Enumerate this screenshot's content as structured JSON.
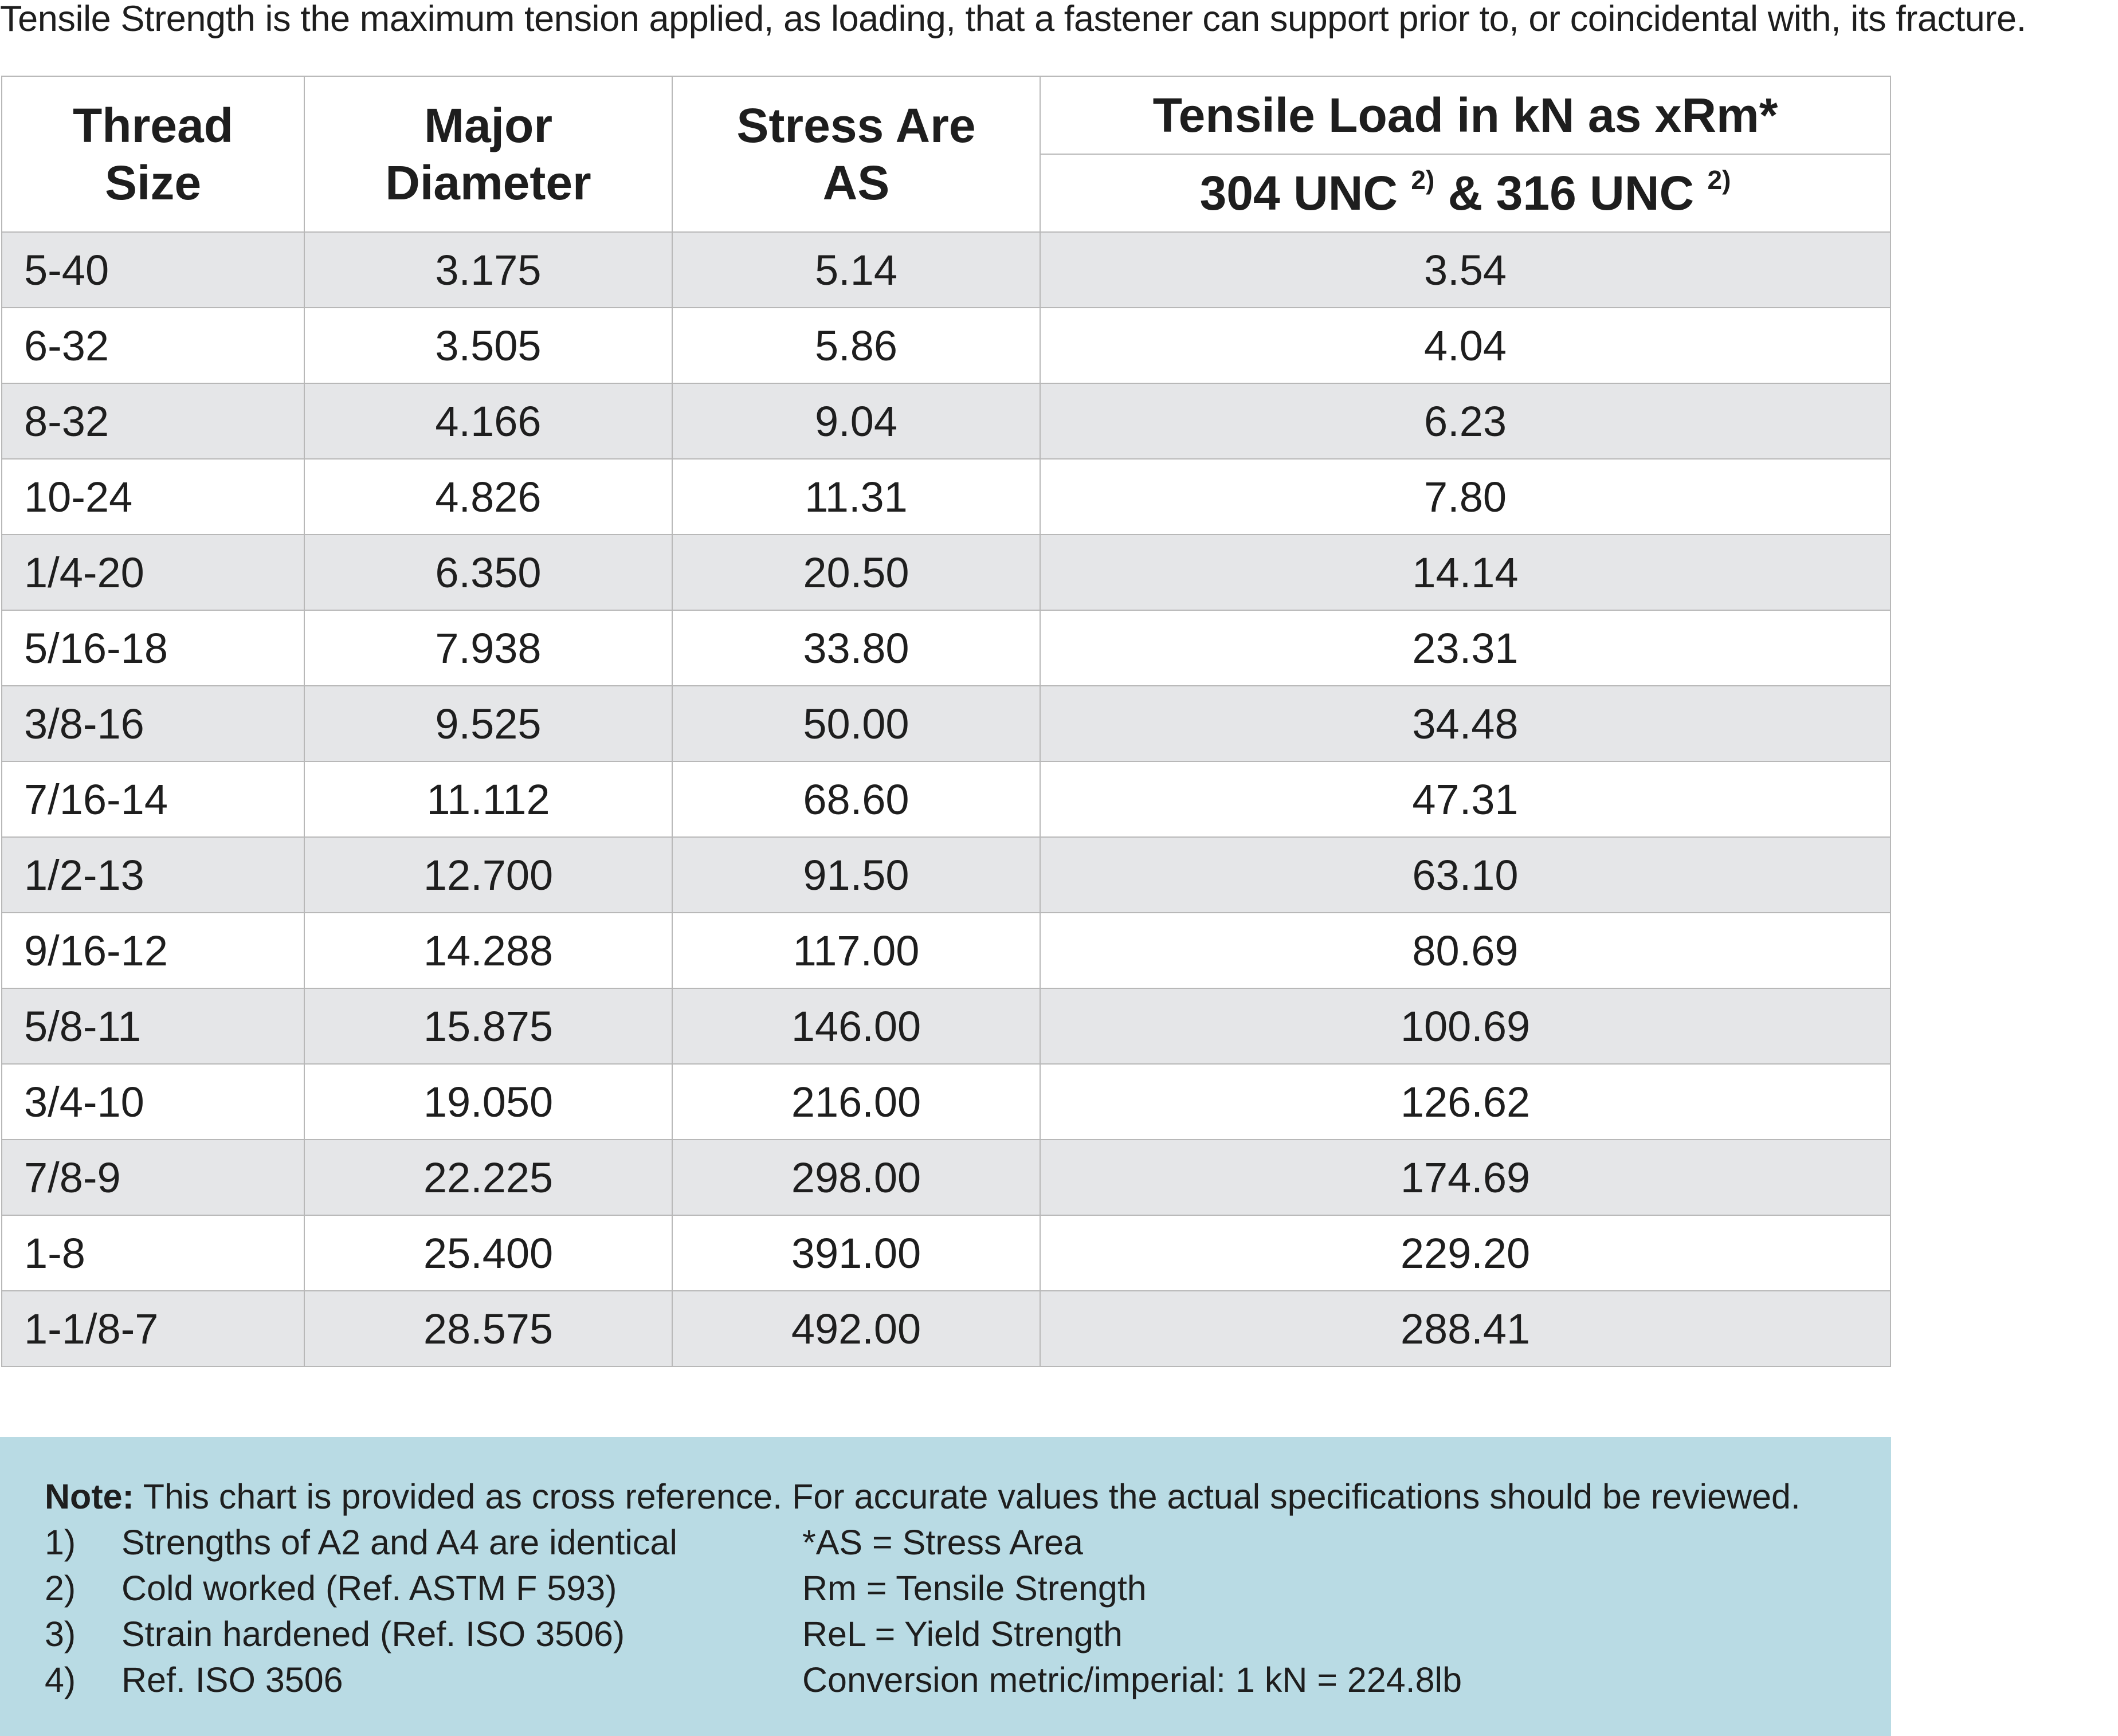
{
  "intro_text": "Tensile Strength is the maximum tension applied, as loading, that a fastener can support prior to, or coincidental with, its fracture.",
  "table": {
    "headers": {
      "thread_size": [
        "Thread",
        "Size"
      ],
      "major_diameter": [
        "Major",
        "Diameter"
      ],
      "stress_area": [
        "Stress Are",
        "AS"
      ],
      "tensile_load": "Tensile Load in kN as xRm*",
      "material_a": "304 UNC",
      "material_a_note": "2)",
      "material_joiner": "& 316 UNC",
      "material_b_note": "2)"
    },
    "rows": [
      [
        "5-40",
        "3.175",
        "5.14",
        "3.54"
      ],
      [
        "6-32",
        "3.505",
        "5.86",
        "4.04"
      ],
      [
        "8-32",
        "4.166",
        "9.04",
        "6.23"
      ],
      [
        "10-24",
        "4.826",
        "11.31",
        "7.80"
      ],
      [
        "1/4-20",
        "6.350",
        "20.50",
        "14.14"
      ],
      [
        "5/16-18",
        "7.938",
        "33.80",
        "23.31"
      ],
      [
        "3/8-16",
        "9.525",
        "50.00",
        "34.48"
      ],
      [
        "7/16-14",
        "11.112",
        "68.60",
        "47.31"
      ],
      [
        "1/2-13",
        "12.700",
        "91.50",
        "63.10"
      ],
      [
        "9/16-12",
        "14.288",
        "117.00",
        "80.69"
      ],
      [
        "5/8-11",
        "15.875",
        "146.00",
        "100.69"
      ],
      [
        "3/4-10",
        "19.050",
        "216.00",
        "126.62"
      ],
      [
        "7/8-9",
        "22.225",
        "298.00",
        "174.69"
      ],
      [
        "1-8",
        "25.400",
        "391.00",
        "229.20"
      ],
      [
        "1-1/8-7",
        "28.575",
        "492.00",
        "288.41"
      ]
    ]
  },
  "note": {
    "label": "Note:",
    "text": "This chart is provided as cross reference. For accurate values the actual specifications should be reviewed.",
    "items": [
      {
        "num": "1)",
        "text": "Strengths of A2 and A4 are identical",
        "def": "*AS = Stress Area"
      },
      {
        "num": "2)",
        "text": "Cold worked (Ref. ASTM F 593)",
        "def": "Rm = Tensile Strength"
      },
      {
        "num": "3)",
        "text": "Strain hardened (Ref. ISO 3506)",
        "def": "ReL = Yield Strength"
      },
      {
        "num": "4)",
        "text": "Ref. ISO 3506",
        "def": "Conversion metric/imperial: 1 kN = 224.8lb"
      }
    ]
  },
  "colors": {
    "header_bg": "#ffffff",
    "stripe_bg": "#e5e6e8",
    "note_bg": "#b9dbe4",
    "grid_line": "#b8b8b8"
  }
}
